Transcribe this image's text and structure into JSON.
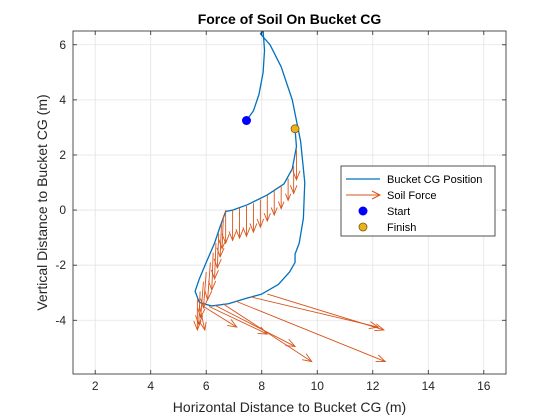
{
  "chart_data": {
    "type": "line",
    "title": "Force of Soil On Bucket CG",
    "xlabel": "Horizontal Distance to Bucket CG (m)",
    "ylabel": "Vertical Distance to Bucket CG (m)",
    "xlim": [
      1.2,
      16.8
    ],
    "ylim": [
      -5.95,
      6.5
    ],
    "xticks": [
      2,
      4,
      6,
      8,
      10,
      12,
      14,
      16
    ],
    "yticks": [
      -4,
      -2,
      0,
      2,
      4,
      6
    ],
    "grid": true,
    "legend_position": "right",
    "colors": {
      "path": "#0072BD",
      "force": "#D95319",
      "start": "#0000FF",
      "finish": "#EDB120"
    },
    "series": [
      {
        "name": "Bucket CG Position",
        "style": "line",
        "x": [
          7.45,
          7.7,
          7.9,
          8.05,
          8.1,
          8.05,
          7.95,
          8.3,
          8.7,
          9.1,
          9.4,
          9.55,
          9.5,
          9.35,
          9.2,
          9.2,
          9.0,
          8.6,
          8.0,
          7.45,
          6.8,
          6.2,
          5.75,
          5.6,
          5.75,
          6.0,
          6.3,
          6.5,
          6.7,
          6.95,
          7.5,
          8.2,
          8.8,
          9.1,
          9.25,
          9.2
        ],
        "y": [
          3.25,
          3.6,
          4.2,
          5.0,
          5.8,
          6.5,
          6.4,
          6.0,
          5.2,
          4.0,
          2.5,
          1.0,
          -0.3,
          -1.2,
          -1.6,
          -1.9,
          -2.25,
          -2.7,
          -3.05,
          -3.2,
          -3.4,
          -3.48,
          -3.35,
          -2.95,
          -2.5,
          -1.9,
          -1.2,
          -0.6,
          -0.05,
          0.0,
          0.2,
          0.55,
          0.95,
          1.5,
          2.3,
          2.95
        ]
      },
      {
        "name": "Soil Force",
        "style": "quiver",
        "arrows": [
          {
            "x": 6.7,
            "y": 0.0,
            "dx": 0.0,
            "dy": -1.2
          },
          {
            "x": 6.95,
            "y": 0.0,
            "dx": 0.0,
            "dy": -1.1
          },
          {
            "x": 7.2,
            "y": 0.08,
            "dx": 0.0,
            "dy": -1.1
          },
          {
            "x": 7.45,
            "y": 0.15,
            "dx": 0.0,
            "dy": -1.1
          },
          {
            "x": 7.7,
            "y": 0.25,
            "dx": 0.0,
            "dy": -1.05
          },
          {
            "x": 7.95,
            "y": 0.38,
            "dx": 0.0,
            "dy": -1.0
          },
          {
            "x": 8.2,
            "y": 0.55,
            "dx": 0.0,
            "dy": -0.95
          },
          {
            "x": 8.45,
            "y": 0.72,
            "dx": 0.0,
            "dy": -0.9
          },
          {
            "x": 8.7,
            "y": 0.9,
            "dx": 0.0,
            "dy": -0.85
          },
          {
            "x": 8.95,
            "y": 1.15,
            "dx": 0.0,
            "dy": -0.8
          },
          {
            "x": 9.15,
            "y": 1.6,
            "dx": 0.0,
            "dy": -1.0
          },
          {
            "x": 9.25,
            "y": 2.2,
            "dx": 0.0,
            "dy": -1.1
          },
          {
            "x": 6.62,
            "y": -0.2,
            "dx": -0.05,
            "dy": -1.2
          },
          {
            "x": 6.55,
            "y": -0.5,
            "dx": -0.05,
            "dy": -1.2
          },
          {
            "x": 6.45,
            "y": -0.85,
            "dx": -0.05,
            "dy": -1.25
          },
          {
            "x": 6.35,
            "y": -1.2,
            "dx": -0.05,
            "dy": -1.3
          },
          {
            "x": 6.25,
            "y": -1.55,
            "dx": -0.05,
            "dy": -1.35
          },
          {
            "x": 6.15,
            "y": -1.9,
            "dx": -0.1,
            "dy": -1.35
          },
          {
            "x": 6.0,
            "y": -2.25,
            "dx": -0.1,
            "dy": -1.3
          },
          {
            "x": 5.9,
            "y": -2.6,
            "dx": -0.1,
            "dy": -1.3
          },
          {
            "x": 5.78,
            "y": -2.95,
            "dx": -0.05,
            "dy": -1.2
          },
          {
            "x": 5.68,
            "y": -3.25,
            "dx": 0.0,
            "dy": -1.1
          },
          {
            "x": 5.75,
            "y": -3.45,
            "dx": 0.2,
            "dy": -0.9
          },
          {
            "x": 5.9,
            "y": -3.5,
            "dx": 1.2,
            "dy": -0.75
          },
          {
            "x": 6.1,
            "y": -3.5,
            "dx": 2.1,
            "dy": -1.0
          },
          {
            "x": 6.3,
            "y": -3.45,
            "dx": 2.9,
            "dy": -1.5
          },
          {
            "x": 6.6,
            "y": -3.4,
            "dx": 3.2,
            "dy": -2.1
          },
          {
            "x": 7.05,
            "y": -3.3,
            "dx": 5.4,
            "dy": -2.2
          },
          {
            "x": 7.6,
            "y": -3.15,
            "dx": 4.6,
            "dy": -1.1
          },
          {
            "x": 8.2,
            "y": -3.05,
            "dx": 4.2,
            "dy": -1.3
          }
        ]
      },
      {
        "name": "Start",
        "style": "marker",
        "x": [
          7.45
        ],
        "y": [
          3.25
        ]
      },
      {
        "name": "Finish",
        "style": "marker",
        "x": [
          9.2
        ],
        "y": [
          2.95
        ]
      }
    ]
  }
}
